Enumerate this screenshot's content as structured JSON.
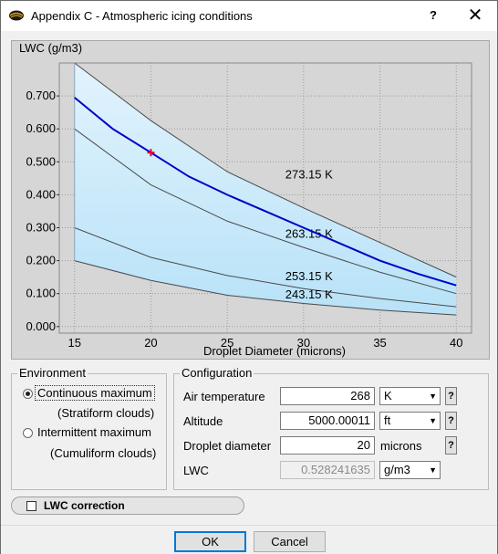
{
  "window": {
    "title": "Appendix C - Atmospheric icing conditions",
    "help_glyph": "?",
    "close_glyph": "✕",
    "icon": "app-logo-icon"
  },
  "chart_data": {
    "type": "line",
    "title": "",
    "xlabel": "Droplet Diameter (microns)",
    "ylabel": "LWC (g/m3)",
    "xlim": [
      14,
      41
    ],
    "ylim": [
      -0.02,
      0.8
    ],
    "x_ticks": [
      15,
      20,
      25,
      30,
      35,
      40
    ],
    "y_ticks": [
      "0.000",
      "0.100",
      "0.200",
      "0.300",
      "0.400",
      "0.500",
      "0.600",
      "0.700"
    ],
    "grid": true,
    "series": [
      {
        "name": "273.15 K",
        "x": [
          15,
          20,
          25,
          30,
          35,
          40
        ],
        "y": [
          0.8,
          0.625,
          0.47,
          0.36,
          0.255,
          0.15
        ]
      },
      {
        "name": "263.15 K",
        "x": [
          15,
          20,
          25,
          30,
          35,
          40
        ],
        "y": [
          0.6,
          0.43,
          0.32,
          0.24,
          0.165,
          0.1
        ]
      },
      {
        "name": "253.15 K",
        "x": [
          15,
          20,
          25,
          30,
          35,
          40
        ],
        "y": [
          0.3,
          0.21,
          0.155,
          0.115,
          0.085,
          0.06
        ]
      },
      {
        "name": "243.15 K",
        "x": [
          15,
          20,
          25,
          30,
          35,
          40
        ],
        "y": [
          0.2,
          0.14,
          0.095,
          0.07,
          0.05,
          0.035
        ]
      }
    ],
    "highlight_curve": {
      "x": [
        15,
        17.5,
        20,
        22.5,
        25,
        27.5,
        30,
        32.5,
        35,
        37.5,
        40
      ],
      "y": [
        0.695,
        0.6,
        0.528,
        0.455,
        0.4,
        0.35,
        0.3,
        0.25,
        0.2,
        0.16,
        0.125
      ]
    },
    "marker": {
      "x": 20,
      "y": 0.528
    },
    "colors": {
      "fill_top": "#e2f3fd",
      "fill_bottom": "#b8e2f8",
      "curve": "#0000c8",
      "marker": "#e8002a",
      "plot_bg": "#d6d6d6"
    },
    "label_positions": [
      {
        "name": "273.15 K",
        "x": 28.8,
        "y": 0.45
      },
      {
        "name": "263.15 K",
        "x": 28.8,
        "y": 0.27
      },
      {
        "name": "253.15 K",
        "x": 28.8,
        "y": 0.14
      },
      {
        "name": "243.15 K",
        "x": 28.8,
        "y": 0.085
      }
    ]
  },
  "environment": {
    "legend": "Environment",
    "options": [
      {
        "label": "Continuous maximum",
        "sub": "(Stratiform clouds)",
        "selected": true
      },
      {
        "label": "Intermittent maximum",
        "sub": "(Cumuliform clouds)",
        "selected": false
      }
    ]
  },
  "configuration": {
    "legend": "Configuration",
    "air_temperature": {
      "label": "Air temperature",
      "value": "268",
      "unit": "K",
      "help": "?"
    },
    "altitude": {
      "label": "Altitude",
      "value": "5000.00011",
      "unit": "ft",
      "help": "?"
    },
    "droplet_diameter": {
      "label": "Droplet diameter",
      "value": "20",
      "unit": "microns",
      "help": "?"
    },
    "lwc": {
      "label": "LWC",
      "value": "0.528241635",
      "unit": "g/m3"
    }
  },
  "lwc_correction": {
    "label": "LWC correction",
    "checked": false
  },
  "buttons": {
    "ok": "OK",
    "cancel": "Cancel"
  }
}
